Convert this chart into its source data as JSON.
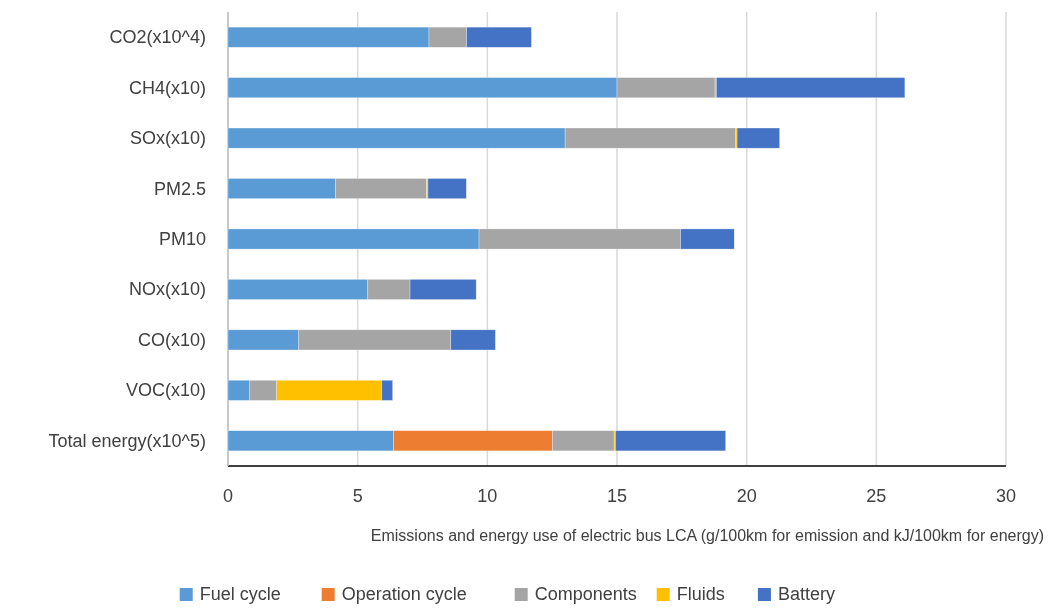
{
  "chart_data": {
    "type": "bar",
    "orientation": "horizontal",
    "stacked": true,
    "xlabel": "Emissions and energy use of electric bus LCA (g/100km for emission and kJ/100km for energy)",
    "categories": [
      "CO2(x10^4)",
      "CH4(x10)",
      "SOx(x10)",
      "PM2.5",
      "PM10",
      "NOx(x10)",
      "CO(x10)",
      "VOC(x10)",
      "Total energy(x10^5)"
    ],
    "series": [
      {
        "name": "Fuel cycle",
        "color": "#5b9bd5",
        "values": [
          7.75,
          15.0,
          13.0,
          4.15,
          9.68,
          5.39,
          2.73,
          0.84,
          6.39
        ]
      },
      {
        "name": "Operation cycle",
        "color": "#ed7d31",
        "values": [
          0,
          0,
          0,
          0,
          0,
          0,
          0,
          0,
          6.12
        ]
      },
      {
        "name": "Components",
        "color": "#a5a5a5",
        "values": [
          1.45,
          3.78,
          6.58,
          3.51,
          7.77,
          1.63,
          5.86,
          1.04,
          2.38
        ]
      },
      {
        "name": "Fluids",
        "color": "#ffc000",
        "values": [
          0,
          0.05,
          0.05,
          0.05,
          0,
          0,
          0,
          4.05,
          0.05
        ]
      },
      {
        "name": "Battery",
        "color": "#4472c4",
        "values": [
          2.5,
          7.27,
          1.64,
          1.48,
          2.07,
          2.55,
          1.72,
          0.42,
          4.25
        ]
      }
    ],
    "xlim": [
      0,
      30
    ],
    "xticks": [
      0,
      5,
      10,
      15,
      20,
      25,
      30
    ],
    "grid": "x",
    "legend": "bottom"
  }
}
